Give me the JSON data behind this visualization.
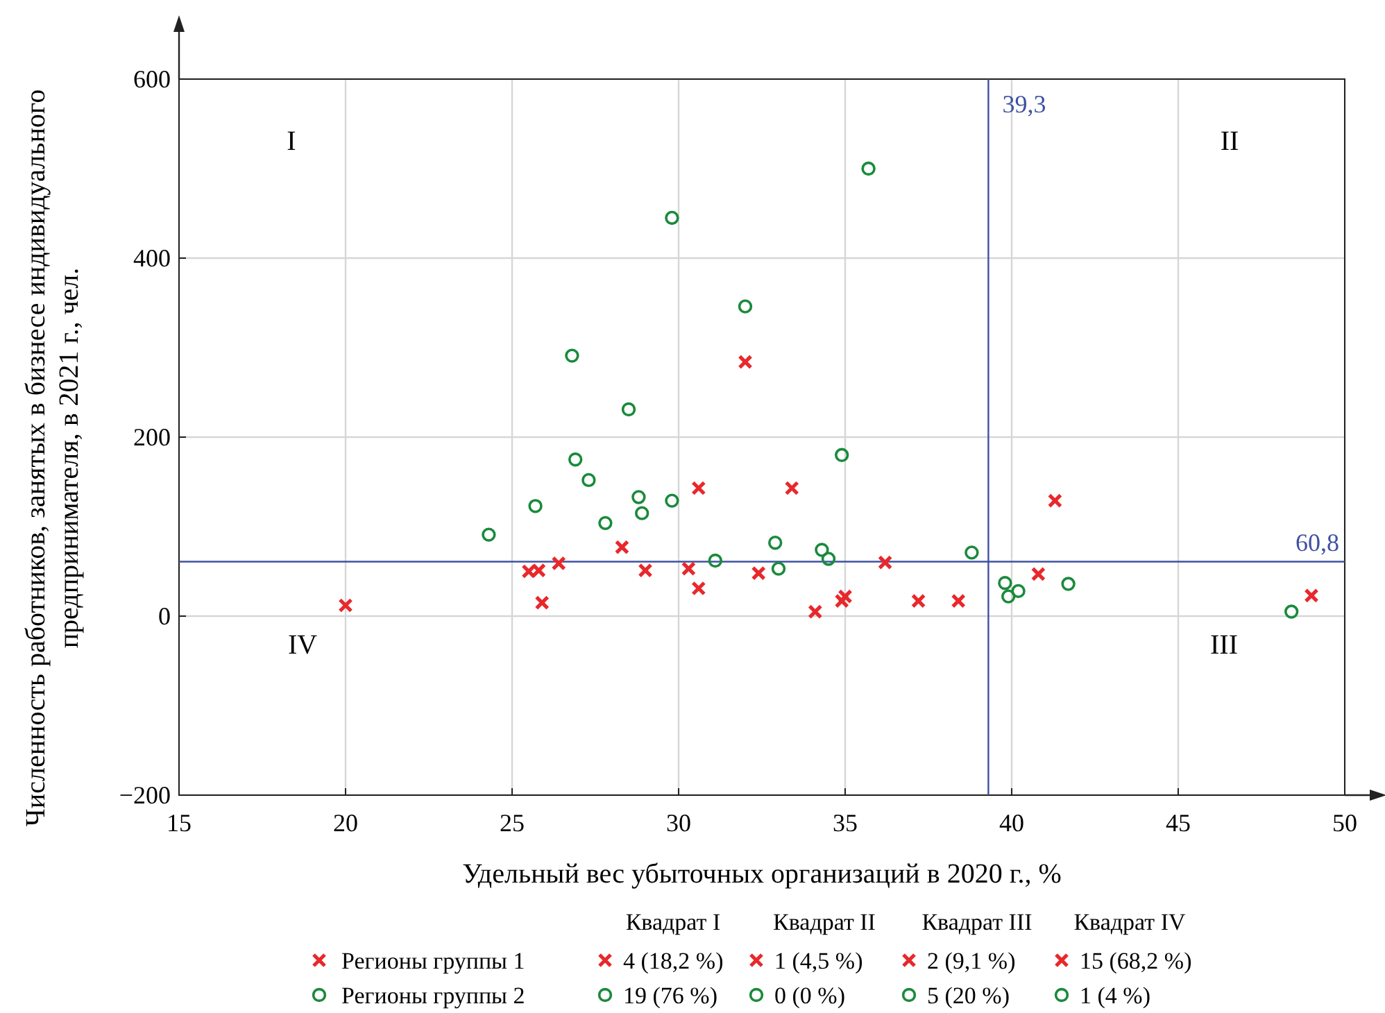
{
  "chart_data": {
    "type": "scatter",
    "xlabel": "Удельный вес убыточных организаций в 2020 г., %",
    "ylabel": "Численность работников, занятых в бизнесе индивидуального предпринимателя, в 2021 г., чел.",
    "xlim": [
      15,
      50
    ],
    "xticks": [
      15,
      20,
      25,
      30,
      35,
      40,
      45,
      50
    ],
    "ylim": [
      -200,
      600
    ],
    "yticks": [
      {
        "value": -200,
        "label": "−200"
      },
      0,
      200,
      400,
      600
    ],
    "grid": true,
    "legend": "bottom",
    "series": [
      {
        "name": "Регионы группы 1",
        "color": "#e8282b",
        "marker": "cross",
        "x": [
          20,
          25.5,
          25.8,
          25.9,
          26.4,
          28.3,
          29.0,
          30.3,
          30.6,
          30.6,
          32,
          32.4,
          33.4,
          34.1,
          34.9,
          35.0,
          36.2,
          37.2,
          38.4,
          40.8,
          41.3,
          49.0
        ],
        "values": [
          12,
          50,
          51,
          15,
          59,
          77,
          51,
          53,
          143,
          31,
          284,
          48,
          143,
          5,
          17,
          22,
          60,
          17,
          17,
          47,
          129,
          23
        ]
      },
      {
        "name": "Регионы группы 2",
        "color": "#1a8a3c",
        "marker": "circle",
        "x": [
          24.3,
          25.7,
          26.8,
          26.9,
          27.3,
          27.8,
          28.5,
          28.8,
          28.9,
          29.8,
          29.8,
          31.1,
          32,
          32.9,
          33.0,
          34.3,
          34.5,
          34.9,
          35.7,
          38.8,
          39.8,
          39.9,
          40.2,
          41.7,
          48.4
        ],
        "values": [
          91,
          123,
          291,
          175,
          152,
          104,
          231,
          133,
          115,
          129,
          445,
          62,
          346,
          82,
          53,
          74,
          64,
          180,
          500,
          71,
          37,
          22,
          28,
          36,
          5
        ]
      }
    ],
    "ref_lines": [
      {
        "axis": "x",
        "value": 39.3,
        "label": "39,3",
        "color": "#3f51a0"
      },
      {
        "axis": "y",
        "value": 60.8,
        "label": "60,8",
        "color": "#3f51a0"
      }
    ],
    "annotations": [
      "I",
      "II",
      "III",
      "IV",
      "Квадрат I",
      "Квадрат II",
      "Квадрат III",
      "Квадрат IV",
      "4 (18,2 %)",
      "1 (4,5 %)",
      "2 (9,1 %)",
      "15 (68,2 %)",
      "19 (76 %)",
      "0 (0 %)",
      "5 (20 %)",
      "1 (4 %)"
    ]
  }
}
